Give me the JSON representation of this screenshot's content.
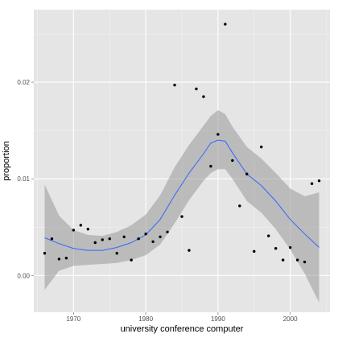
{
  "chart_data": {
    "type": "scatter",
    "title": "",
    "xlabel": "university conference computer",
    "ylabel": "proportion",
    "xlim": [
      1964.5,
      2005.5
    ],
    "ylim": [
      -0.0038,
      0.0275
    ],
    "x_ticks": [
      1970,
      1980,
      1990,
      2000
    ],
    "y_ticks": [
      0.0,
      0.01,
      0.02
    ],
    "x_tick_labels": [
      "1970",
      "1980",
      "1990",
      "2000"
    ],
    "y_tick_labels": [
      "0.00",
      "0.01",
      "0.02"
    ],
    "grid": true,
    "background": "#e5e5e5",
    "grid_color": "#ffffff",
    "point_color": "#000000",
    "smooth_color": "#3366ff",
    "ribbon_color": "#999999",
    "points": [
      {
        "x": 1966,
        "y": 0.0023
      },
      {
        "x": 1967,
        "y": 0.0038
      },
      {
        "x": 1968,
        "y": 0.0017
      },
      {
        "x": 1969,
        "y": 0.0018
      },
      {
        "x": 1970,
        "y": 0.0047
      },
      {
        "x": 1971,
        "y": 0.0052
      },
      {
        "x": 1972,
        "y": 0.0048
      },
      {
        "x": 1973,
        "y": 0.0034
      },
      {
        "x": 1974,
        "y": 0.0037
      },
      {
        "x": 1975,
        "y": 0.0038
      },
      {
        "x": 1976,
        "y": 0.0023
      },
      {
        "x": 1977,
        "y": 0.004
      },
      {
        "x": 1978,
        "y": 0.0016
      },
      {
        "x": 1979,
        "y": 0.0038
      },
      {
        "x": 1980,
        "y": 0.0043
      },
      {
        "x": 1981,
        "y": 0.0035
      },
      {
        "x": 1982,
        "y": 0.004
      },
      {
        "x": 1983,
        "y": 0.0045
      },
      {
        "x": 1984,
        "y": 0.0197
      },
      {
        "x": 1985,
        "y": 0.0061
      },
      {
        "x": 1986,
        "y": 0.0026
      },
      {
        "x": 1987,
        "y": 0.0193
      },
      {
        "x": 1988,
        "y": 0.0185
      },
      {
        "x": 1989,
        "y": 0.0113
      },
      {
        "x": 1990,
        "y": 0.0146
      },
      {
        "x": 1991,
        "y": 0.026
      },
      {
        "x": 1992,
        "y": 0.0119
      },
      {
        "x": 1993,
        "y": 0.0072
      },
      {
        "x": 1994,
        "y": 0.0105
      },
      {
        "x": 1995,
        "y": 0.0025
      },
      {
        "x": 1996,
        "y": 0.0133
      },
      {
        "x": 1997,
        "y": 0.0041
      },
      {
        "x": 1998,
        "y": 0.0028
      },
      {
        "x": 1999,
        "y": 0.0016
      },
      {
        "x": 2000,
        "y": 0.0029
      },
      {
        "x": 2001,
        "y": 0.0016
      },
      {
        "x": 2002,
        "y": 0.0014
      },
      {
        "x": 2003,
        "y": 0.0095
      },
      {
        "x": 2004,
        "y": 0.0098
      }
    ],
    "smooth": [
      {
        "x": 1966,
        "y": 0.0039,
        "lo": -0.0015,
        "hi": 0.0094
      },
      {
        "x": 1968,
        "y": 0.0033,
        "lo": 0.0005,
        "hi": 0.0062
      },
      {
        "x": 1970,
        "y": 0.0028,
        "lo": 0.001,
        "hi": 0.0047
      },
      {
        "x": 1972,
        "y": 0.0026,
        "lo": 0.0011,
        "hi": 0.0042
      },
      {
        "x": 1974,
        "y": 0.0026,
        "lo": 0.0012,
        "hi": 0.0041
      },
      {
        "x": 1976,
        "y": 0.0029,
        "lo": 0.0013,
        "hi": 0.0045
      },
      {
        "x": 1978,
        "y": 0.0034,
        "lo": 0.0016,
        "hi": 0.0052
      },
      {
        "x": 1980,
        "y": 0.0042,
        "lo": 0.0021,
        "hi": 0.0063
      },
      {
        "x": 1982,
        "y": 0.0058,
        "lo": 0.0032,
        "hi": 0.0083
      },
      {
        "x": 1984,
        "y": 0.0083,
        "lo": 0.0054,
        "hi": 0.0112
      },
      {
        "x": 1986,
        "y": 0.0106,
        "lo": 0.0078,
        "hi": 0.0135
      },
      {
        "x": 1988,
        "y": 0.0126,
        "lo": 0.0098,
        "hi": 0.0155
      },
      {
        "x": 1989,
        "y": 0.0137,
        "lo": 0.0106,
        "hi": 0.0165
      },
      {
        "x": 1990,
        "y": 0.014,
        "lo": 0.011,
        "hi": 0.0171
      },
      {
        "x": 1991,
        "y": 0.0139,
        "lo": 0.011,
        "hi": 0.0167
      },
      {
        "x": 1992,
        "y": 0.0127,
        "lo": 0.01,
        "hi": 0.0154
      },
      {
        "x": 1994,
        "y": 0.0105,
        "lo": 0.0077,
        "hi": 0.0133
      },
      {
        "x": 1996,
        "y": 0.0093,
        "lo": 0.0065,
        "hi": 0.0121
      },
      {
        "x": 1998,
        "y": 0.0077,
        "lo": 0.0048,
        "hi": 0.0106
      },
      {
        "x": 2000,
        "y": 0.0058,
        "lo": 0.0027,
        "hi": 0.009
      },
      {
        "x": 2002,
        "y": 0.0043,
        "lo": 0.0002,
        "hi": 0.0082
      },
      {
        "x": 2004,
        "y": 0.0029,
        "lo": -0.0028,
        "hi": 0.0086
      }
    ]
  }
}
